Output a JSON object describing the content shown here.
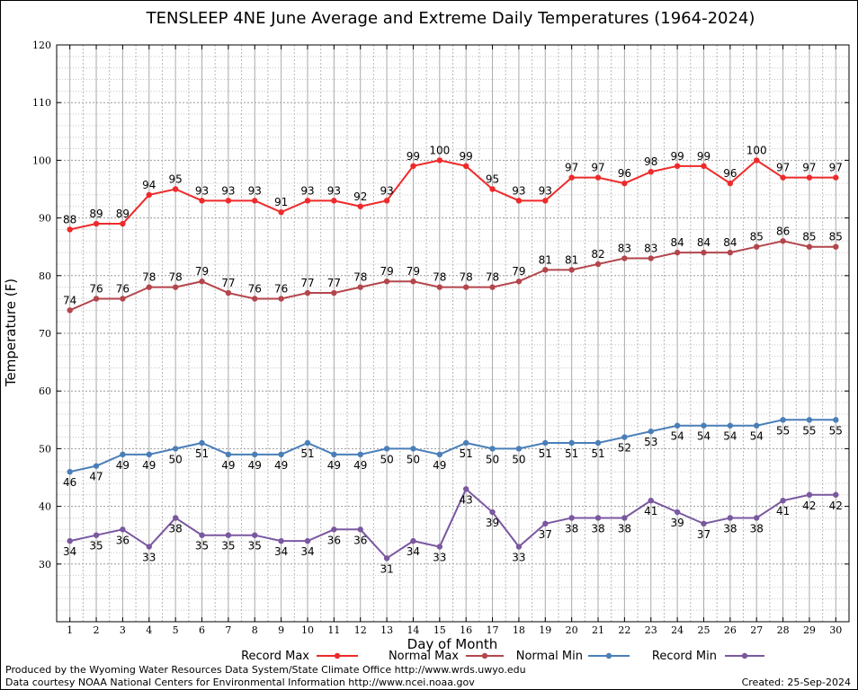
{
  "chart_data": {
    "type": "line",
    "title": "TENSLEEP 4NE June Average and Extreme Daily Temperatures (1964-2024)",
    "xlabel": "Day of Month",
    "ylabel": "Temperature (F)",
    "xlim": [
      0.5,
      30.5
    ],
    "ylim": [
      20,
      120
    ],
    "yticks": [
      30,
      40,
      50,
      60,
      70,
      80,
      90,
      100,
      110,
      120
    ],
    "x": [
      1,
      2,
      3,
      4,
      5,
      6,
      7,
      8,
      9,
      10,
      11,
      12,
      13,
      14,
      15,
      16,
      17,
      18,
      19,
      20,
      21,
      22,
      23,
      24,
      25,
      26,
      27,
      28,
      29,
      30
    ],
    "grid": true,
    "legend_position": "bottom",
    "series": [
      {
        "name": "Record Max",
        "color": "#ee2a2a",
        "label_position": "above",
        "values": [
          88,
          89,
          89,
          94,
          95,
          93,
          93,
          93,
          91,
          93,
          93,
          92,
          93,
          99,
          100,
          99,
          95,
          93,
          93,
          97,
          97,
          96,
          98,
          99,
          99,
          96,
          100,
          97,
          97,
          97
        ]
      },
      {
        "name": "Normal Max",
        "color": "#b3464c",
        "label_position": "above",
        "values": [
          74,
          76,
          76,
          78,
          78,
          79,
          77,
          76,
          76,
          77,
          77,
          78,
          79,
          79,
          78,
          78,
          78,
          79,
          81,
          81,
          82,
          83,
          83,
          84,
          84,
          84,
          85,
          86,
          85,
          85
        ]
      },
      {
        "name": "Normal Min",
        "color": "#4a7fb8",
        "label_position": "below",
        "values": [
          46,
          47,
          49,
          49,
          50,
          51,
          49,
          49,
          49,
          51,
          49,
          49,
          50,
          50,
          49,
          51,
          50,
          50,
          51,
          51,
          51,
          52,
          53,
          54,
          54,
          54,
          54,
          55,
          55,
          55
        ]
      },
      {
        "name": "Record Min",
        "color": "#7a58a0",
        "label_position": "below",
        "values": [
          34,
          35,
          36,
          33,
          38,
          35,
          35,
          35,
          34,
          34,
          36,
          36,
          31,
          34,
          33,
          43,
          39,
          33,
          37,
          38,
          38,
          38,
          41,
          39,
          37,
          38,
          38,
          41,
          42,
          42
        ]
      }
    ]
  },
  "footer": {
    "produced_by": "Produced by the Wyoming Water Resources Data System/State Climate Office http://www.wrds.uwyo.edu",
    "data_courtesy": "Data courtesy NOAA National Centers for Environmental Information http://www.ncei.noaa.gov",
    "created": "Created:  25-Sep-2024"
  }
}
